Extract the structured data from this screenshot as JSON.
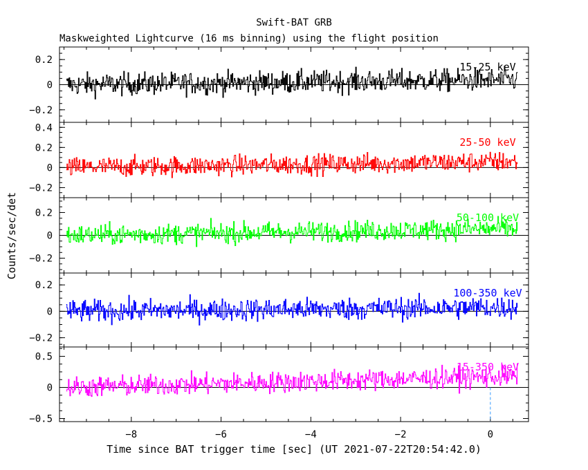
{
  "chart_data": {
    "type": "line",
    "title": "Swift-BAT GRB",
    "subtitle": "Maskweighted Lightcurve (16 ms binning) using the flight position",
    "xlabel": "Time since BAT trigger time [sec] (UT 2021-07-22T20:54:42.0)",
    "ylabel": "Counts/sec/det",
    "xlim": [
      -9.6,
      0.85
    ],
    "x_ticks": [
      -8,
      -6,
      -4,
      -2,
      0
    ],
    "x_tick_labels": [
      "−8",
      "−6",
      "−4",
      "−2",
      "0"
    ],
    "x_range": [
      -9.45,
      0.6
    ],
    "bin_width": 0.016,
    "trigger_time": 0,
    "panels": [
      {
        "band": "15-25 keV",
        "color": "#000000",
        "ylim": [
          -0.3,
          0.3
        ],
        "y_ticks": [
          -0.2,
          0,
          0.2
        ],
        "y_tick_labels": [
          "−0.2",
          "0",
          "0.2"
        ],
        "noise_amp": 0.085,
        "trend": [
          0.0,
          0.04
        ]
      },
      {
        "band": "25-50 keV",
        "color": "#ff0000",
        "ylim": [
          -0.3,
          0.45
        ],
        "y_ticks": [
          -0.2,
          0,
          0.2,
          0.4
        ],
        "y_tick_labels": [
          "−0.2",
          "0",
          "0.2",
          "0.4"
        ],
        "noise_amp": 0.095,
        "trend": [
          0.0,
          0.06
        ]
      },
      {
        "band": "50-100 keV",
        "color": "#00ff00",
        "ylim": [
          -0.33,
          0.33
        ],
        "y_ticks": [
          -0.2,
          0,
          0.2
        ],
        "y_tick_labels": [
          "−0.2",
          "0",
          "0.2"
        ],
        "noise_amp": 0.085,
        "trend": [
          0.0,
          0.06
        ]
      },
      {
        "band": "100-350 keV",
        "color": "#0000ff",
        "ylim": [
          -0.27,
          0.29
        ],
        "y_ticks": [
          -0.2,
          0,
          0.2
        ],
        "y_tick_labels": [
          "−0.2",
          "0",
          "0.2"
        ],
        "noise_amp": 0.08,
        "trend": [
          0.0,
          0.03
        ]
      },
      {
        "band": "15-350 keV",
        "color": "#ff00ff",
        "ylim": [
          -0.55,
          0.65
        ],
        "y_ticks": [
          -0.5,
          0,
          0.5
        ],
        "y_tick_labels": [
          "−0.5",
          "0",
          "0.5"
        ],
        "noise_amp": 0.16,
        "trend": [
          0.0,
          0.18
        ]
      }
    ]
  }
}
